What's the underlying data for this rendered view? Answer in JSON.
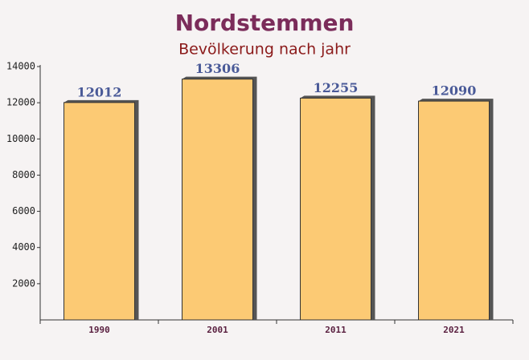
{
  "chart_data": {
    "type": "bar",
    "title": "Nordstemmen",
    "subtitle": "Bevölkerung nach jahr",
    "categories": [
      "1990",
      "2001",
      "2011",
      "2021"
    ],
    "values": [
      12012,
      13306,
      12255,
      12090
    ],
    "color": "#fdc566",
    "ylim": [
      0,
      14000
    ],
    "yticks": [
      2000,
      4000,
      6000,
      8000,
      10000,
      12000,
      14000
    ]
  }
}
